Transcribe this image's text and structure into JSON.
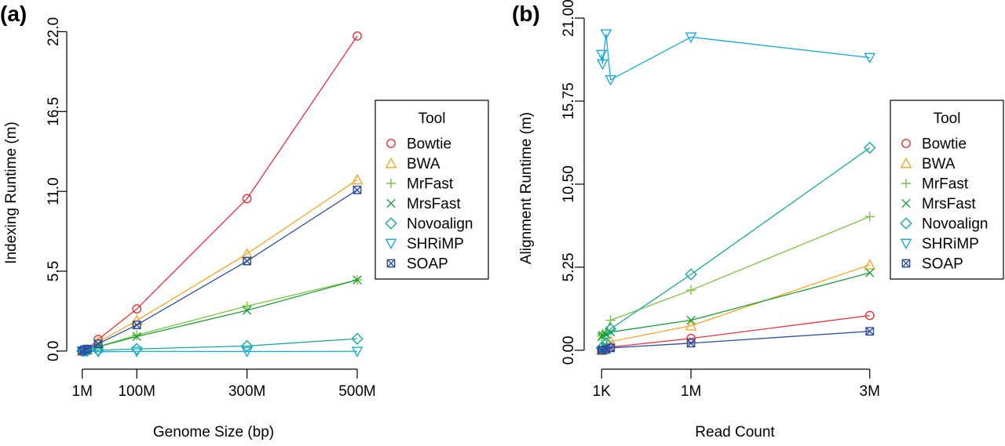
{
  "chart_data": [
    {
      "type": "line",
      "panel_label": "(a)",
      "xlabel": "Genome Size (bp)",
      "ylabel": "Indexing Runtime (m)",
      "x_ticks": [
        {
          "value": 1,
          "label": "1M"
        },
        {
          "value": 100,
          "label": "100M"
        },
        {
          "value": 300,
          "label": "300M"
        },
        {
          "value": 500,
          "label": "500M"
        }
      ],
      "y_ticks": [
        {
          "value": 0,
          "label": "0.0"
        },
        {
          "value": 5.5,
          "label": "5.5"
        },
        {
          "value": 11,
          "label": "11.0"
        },
        {
          "value": 16.5,
          "label": "16.5"
        },
        {
          "value": 22,
          "label": "22.0"
        }
      ],
      "xlim": [
        -10,
        510
      ],
      "ylim": [
        -0.6,
        22.4
      ],
      "legend_title": "Tool",
      "legend_position": "right",
      "series": [
        {
          "name": "Bowtie",
          "color": "#e8303a",
          "marker": "circle",
          "x": [
            1,
            5,
            10,
            30,
            100,
            300,
            500
          ],
          "y": [
            0.0,
            0.05,
            0.1,
            0.8,
            2.9,
            10.5,
            21.7
          ]
        },
        {
          "name": "BWA",
          "color": "#f5a623",
          "marker": "triangle",
          "x": [
            1,
            5,
            10,
            30,
            100,
            300,
            500
          ],
          "y": [
            0.0,
            0.04,
            0.08,
            0.6,
            2.1,
            6.7,
            11.8
          ]
        },
        {
          "name": "MrFast",
          "color": "#7dc242",
          "marker": "plus",
          "x": [
            1,
            5,
            10,
            30,
            100,
            300,
            500
          ],
          "y": [
            0.0,
            0.03,
            0.05,
            0.3,
            1.1,
            3.1,
            4.9
          ]
        },
        {
          "name": "MrsFast",
          "color": "#1e9e3a",
          "marker": "cross",
          "x": [
            1,
            5,
            10,
            30,
            100,
            300,
            500
          ],
          "y": [
            0.0,
            0.03,
            0.05,
            0.3,
            1.0,
            2.8,
            4.9
          ]
        },
        {
          "name": "Novoalign",
          "color": "#18a89a",
          "marker": "diamond",
          "x": [
            1,
            5,
            10,
            30,
            100,
            300,
            500
          ],
          "y": [
            0.0,
            0.01,
            0.02,
            0.05,
            0.15,
            0.35,
            0.85
          ]
        },
        {
          "name": "SHRiMP",
          "color": "#19a9d9",
          "marker": "triangle-down",
          "x": [
            1,
            5,
            10,
            30,
            100,
            300,
            500
          ],
          "y": [
            0.0,
            -0.02,
            0.0,
            -0.05,
            -0.02,
            -0.03,
            -0.02
          ]
        },
        {
          "name": "SOAP",
          "color": "#2b4ea2",
          "marker": "boxx",
          "x": [
            1,
            5,
            10,
            30,
            100,
            300,
            500
          ],
          "y": [
            0.0,
            0.1,
            0.15,
            0.5,
            1.8,
            6.2,
            11.1
          ]
        }
      ]
    },
    {
      "type": "line",
      "panel_label": "(b)",
      "xlabel": "Read Count",
      "ylabel": "Alignment Runtime (m)",
      "x_ticks": [
        {
          "value": 0,
          "label": "1K"
        },
        {
          "value": 1000,
          "label": "1M"
        },
        {
          "value": 3000,
          "label": "3M"
        }
      ],
      "y_ticks": [
        {
          "value": 0,
          "label": "0.00"
        },
        {
          "value": 5.25,
          "label": "5.25"
        },
        {
          "value": 10.5,
          "label": "10.50"
        },
        {
          "value": 15.75,
          "label": "15.75"
        },
        {
          "value": 21,
          "label": "21.00"
        }
      ],
      "xlim": [
        -90,
        3090
      ],
      "ylim": [
        -0.6,
        21.3
      ],
      "legend_title": "Tool",
      "legend_position": "right",
      "series": [
        {
          "name": "Bowtie",
          "color": "#e8303a",
          "marker": "circle",
          "x": [
            0,
            10,
            50,
            100,
            1000,
            3000
          ],
          "y": [
            0.0,
            0.02,
            0.05,
            0.2,
            0.75,
            2.2
          ]
        },
        {
          "name": "BWA",
          "color": "#f5a623",
          "marker": "triangle",
          "x": [
            0,
            10,
            50,
            100,
            1000,
            3000
          ],
          "y": [
            0.0,
            0.05,
            0.15,
            0.55,
            1.55,
            5.4
          ]
        },
        {
          "name": "MrFast",
          "color": "#7dc242",
          "marker": "plus",
          "x": [
            0,
            10,
            50,
            100,
            1000,
            3000
          ],
          "y": [
            0.9,
            1.05,
            1.2,
            1.9,
            3.8,
            8.45
          ]
        },
        {
          "name": "MrsFast",
          "color": "#1e9e3a",
          "marker": "cross",
          "x": [
            0,
            10,
            50,
            100,
            1000,
            3000
          ],
          "y": [
            0.85,
            0.95,
            1.0,
            1.15,
            1.9,
            4.9
          ]
        },
        {
          "name": "Novoalign",
          "color": "#18a89a",
          "marker": "diamond",
          "x": [
            0,
            10,
            50,
            100,
            1000,
            3000
          ],
          "y": [
            0.15,
            0.2,
            0.45,
            1.35,
            4.8,
            12.8
          ]
        },
        {
          "name": "SHRiMP",
          "color": "#19a9d9",
          "marker": "triangle-down",
          "x": [
            0,
            10,
            50,
            100,
            1000,
            3000
          ],
          "y": [
            18.7,
            18.1,
            20.0,
            17.1,
            19.8,
            18.5
          ]
        },
        {
          "name": "SOAP",
          "color": "#2b4ea2",
          "marker": "boxx",
          "x": [
            0,
            10,
            50,
            100,
            1000,
            3000
          ],
          "y": [
            0.0,
            0.01,
            0.05,
            0.15,
            0.45,
            1.2
          ]
        }
      ]
    }
  ]
}
